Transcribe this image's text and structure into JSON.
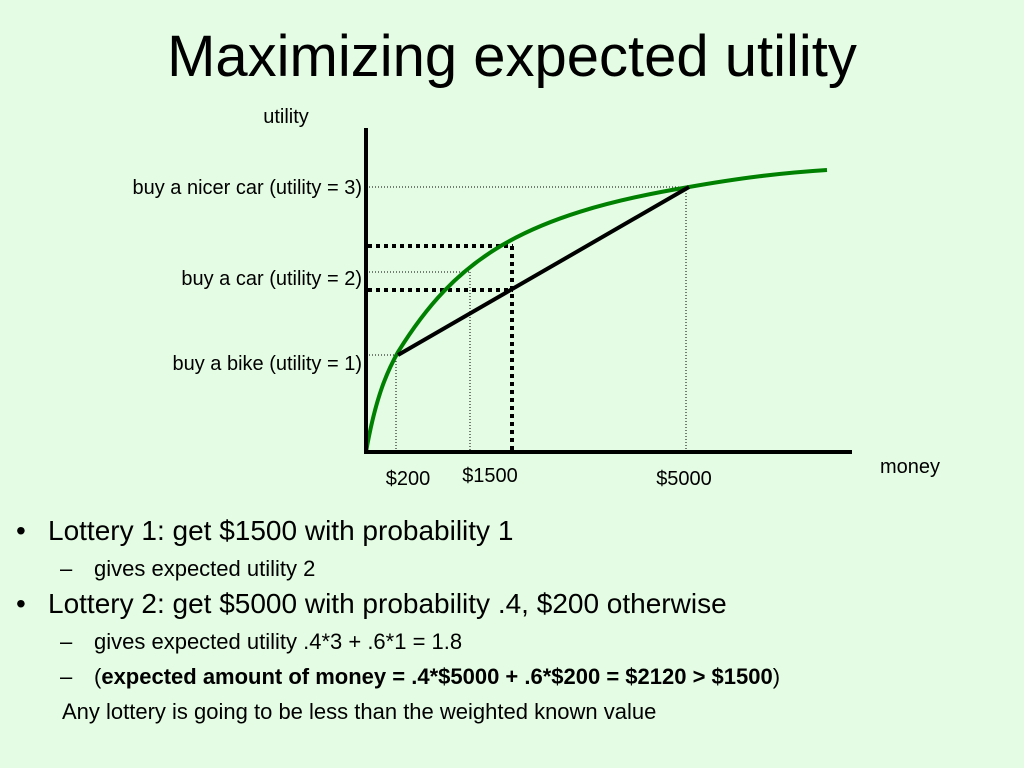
{
  "title": "Maximizing expected utility",
  "diagram": {
    "y_axis_label": "utility",
    "x_axis_label": "money",
    "y_labels": [
      "buy a nicer car (utility = 3)",
      "buy a car (utility = 2)",
      "buy a bike (utility = 1)"
    ],
    "x_labels": [
      "$200",
      "$1500",
      "$5000"
    ],
    "colors": {
      "curve": "#008000",
      "line": "#000000",
      "background": "#e4fce4"
    }
  },
  "bullets": {
    "b1": {
      "marker": "•",
      "text": "Lottery 1: get $1500 with probability 1"
    },
    "b1_sub1": {
      "marker": "–",
      "text": "gives expected utility 2"
    },
    "b2": {
      "marker": "•",
      "text": "Lottery 2: get $5000 with probability .4, $200 otherwise"
    },
    "b2_sub1": {
      "marker": "–",
      "text": "gives expected utility .4*3 + .6*1 = 1.8"
    },
    "b2_sub2": {
      "marker": "–",
      "open": "(",
      "bold": "expected amount of money = .4*$5000 + .6*$200 = $2120 > $1500",
      "close": ")"
    },
    "note": "Any lottery is going to be less than the weighted known value"
  }
}
